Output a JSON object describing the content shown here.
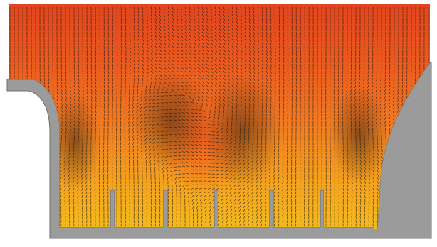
{
  "figure": {
    "kind": "velocity-vector-field",
    "colors": {
      "wall": "#9b9b9b",
      "wall_edge": "#6f6f6f",
      "field_hot": "#e2431e",
      "field_mid": "#f07a22",
      "field_warm": "#f4a31f",
      "field_cool": "#f3c21c",
      "vector": "#1b1410",
      "background": "#ffffff"
    }
  }
}
